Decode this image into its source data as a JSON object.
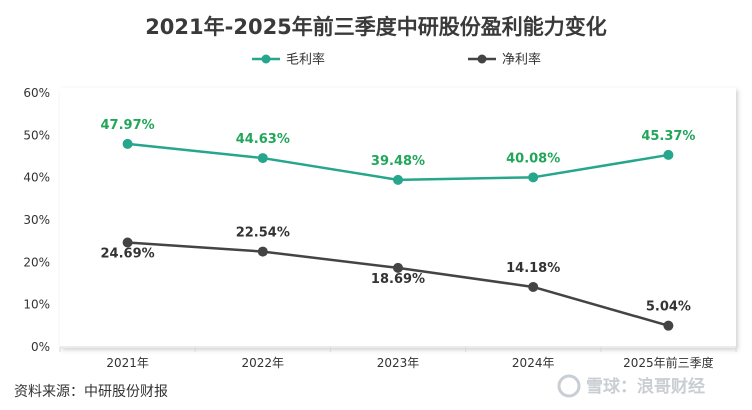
{
  "chart_data": {
    "type": "line",
    "title": "2021年-2025年前三季度中研股份盈利能力变化",
    "categories": [
      "2021年",
      "2022年",
      "2023年",
      "2024年",
      "2025年前三季度"
    ],
    "series": [
      {
        "name": "毛利率",
        "color": "#26a68c",
        "label_color": "#22a65a",
        "values": [
          47.97,
          44.63,
          39.48,
          40.08,
          45.37
        ],
        "labels": [
          "47.97%",
          "44.63%",
          "39.48%",
          "40.08%",
          "45.37%"
        ]
      },
      {
        "name": "净利率",
        "color": "#444444",
        "label_color": "#333333",
        "values": [
          24.69,
          22.54,
          18.69,
          14.18,
          5.04
        ],
        "labels": [
          "24.69%",
          "22.54%",
          "18.69%",
          "14.18%",
          "5.04%"
        ]
      }
    ],
    "ylim": [
      0,
      60
    ],
    "yticks": [
      0,
      10,
      20,
      30,
      40,
      50,
      60
    ],
    "ytick_labels": [
      "0%",
      "10%",
      "20%",
      "30%",
      "40%",
      "50%",
      "60%"
    ],
    "xlabel": "",
    "ylabel": "",
    "legend_position": "top-center",
    "grid": false
  },
  "source": "资料来源：中研股份财报",
  "watermark": "雪球：浪哥财经"
}
